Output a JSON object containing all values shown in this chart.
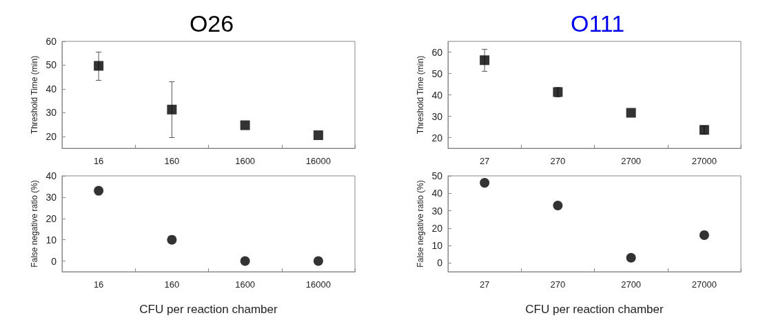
{
  "chart_data": [
    {
      "type": "scatter",
      "title": "O26",
      "ylabel": "Threshold Time (min)",
      "categories": [
        "16",
        "160",
        "1600",
        "16000"
      ],
      "values": [
        49.7,
        31.3,
        24.7,
        20.5
      ],
      "errors": [
        [
          43.6,
          55.5
        ],
        [
          19.5,
          43
        ],
        null,
        null
      ],
      "color": "#000000",
      "marker": "square",
      "ylim": [
        15,
        60
      ],
      "yticks": [
        20,
        30,
        40,
        50,
        60
      ],
      "grid": false
    },
    {
      "type": "scatter",
      "title": "O111",
      "ylabel": "Threshold Time (min)",
      "categories": [
        "27",
        "270",
        "2700",
        "27000"
      ],
      "values": [
        56.2,
        41.3,
        31.6,
        23.6
      ],
      "errors": [
        [
          51,
          61.3
        ],
        [
          39,
          43.4
        ],
        null,
        [
          21.7,
          25.4
        ]
      ],
      "color": "#000000",
      "marker": "square",
      "ylim": [
        15,
        65
      ],
      "yticks": [
        20,
        30,
        40,
        50,
        60
      ],
      "grid": false
    },
    {
      "type": "scatter",
      "xlabel": "CFU per reaction chamber",
      "ylabel": "False negative ratio (%)",
      "categories": [
        "16",
        "160",
        "1600",
        "16000"
      ],
      "values": [
        33,
        10,
        0,
        0
      ],
      "color": "#000000",
      "marker": "circle",
      "ylim": [
        -5,
        40
      ],
      "yticks": [
        0,
        10,
        20,
        30,
        40
      ],
      "grid": false
    },
    {
      "type": "scatter",
      "xlabel": "CFU per reaction chamber",
      "ylabel": "False negative ratio (%)",
      "categories": [
        "27",
        "270",
        "2700",
        "27000"
      ],
      "values": [
        46,
        33,
        3,
        16
      ],
      "color": "#000000",
      "marker": "circle",
      "ylim": [
        -5,
        50
      ],
      "yticks": [
        0,
        10,
        20,
        30,
        40,
        50
      ],
      "grid": false
    }
  ]
}
